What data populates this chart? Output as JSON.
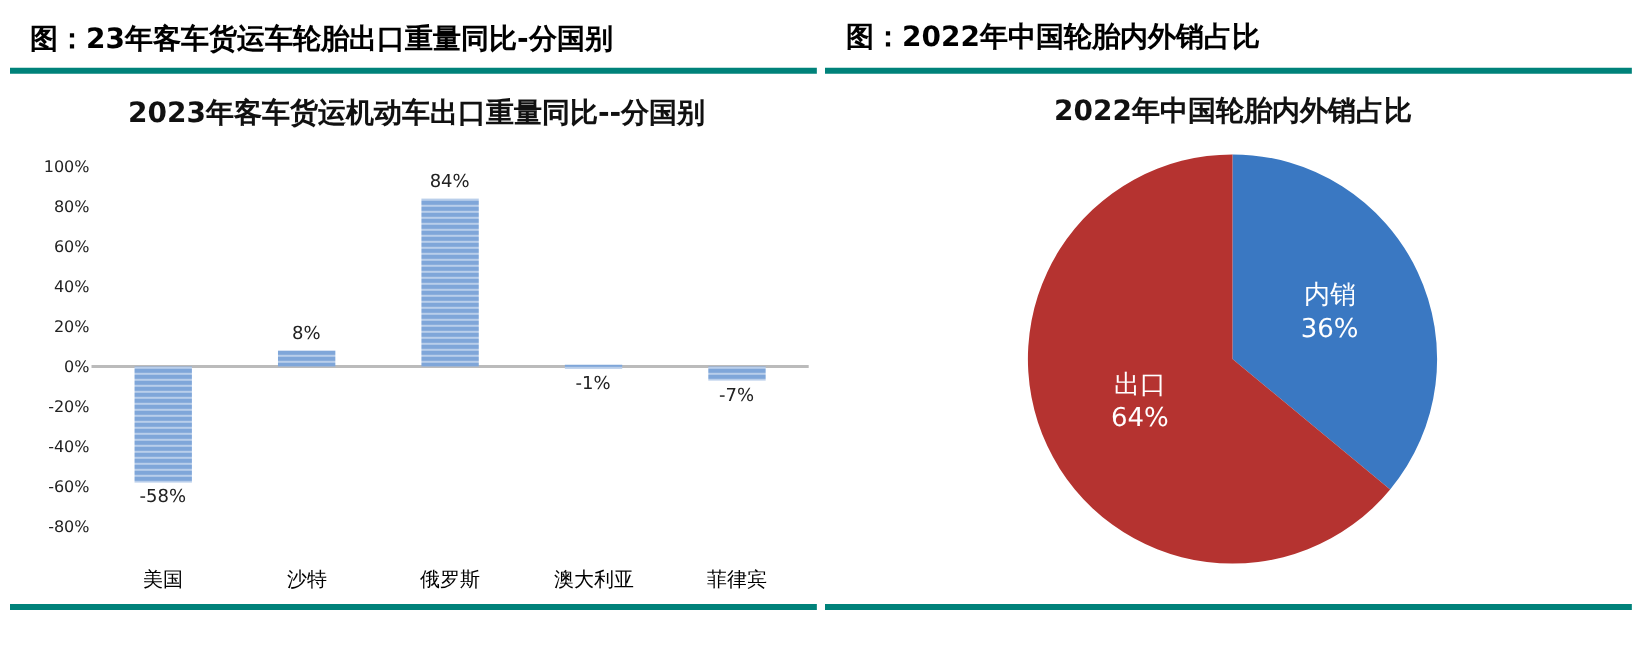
{
  "chart_data": [
    {
      "type": "bar",
      "title": "图：23年客车货运车轮胎出口重量同比-分国别",
      "subtitle": "2023年客车货运机动车出口重量同比--分国别",
      "categories": [
        "美国",
        "沙特",
        "俄罗斯",
        "澳大利亚",
        "菲律宾"
      ],
      "values": [
        -58,
        8,
        84,
        -1,
        -7
      ],
      "value_labels": [
        "-58%",
        "8%",
        "84%",
        "-1%",
        "-7%"
      ],
      "color": "#7fa6d9",
      "ylim": [
        -80,
        100
      ],
      "yticks": [
        {
          "value": -80,
          "label": "-80%"
        },
        {
          "value": -60,
          "label": "-60%"
        },
        {
          "value": -40,
          "label": "-40%"
        },
        {
          "value": -20,
          "label": "-20%"
        },
        {
          "value": 0,
          "label": "0%"
        },
        {
          "value": 20,
          "label": "20%"
        },
        {
          "value": 40,
          "label": "40%"
        },
        {
          "value": 60,
          "label": "60%"
        },
        {
          "value": 80,
          "label": "80%"
        },
        {
          "value": 100,
          "label": "100%"
        }
      ],
      "legend": false
    },
    {
      "type": "pie",
      "title": "图：2022年中国轮胎内外销占比",
      "subtitle": "2022年中国轮胎内外销占比",
      "categories": [
        "内销",
        "出口"
      ],
      "values": [
        36,
        64
      ],
      "value_labels": [
        "36%",
        "64%"
      ],
      "colors": [
        "#3a78c2",
        "#b53330"
      ]
    }
  ]
}
